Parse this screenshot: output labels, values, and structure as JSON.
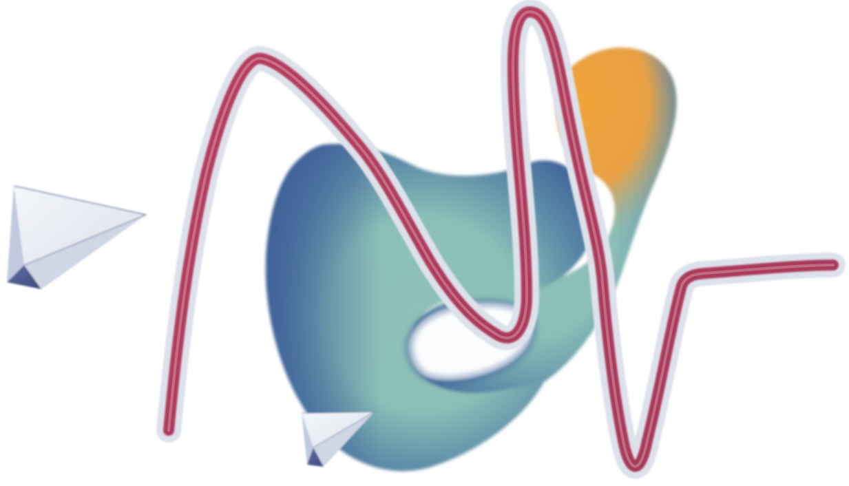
{
  "scene": {
    "background_color": "#ffffff",
    "elements": [
      "gradient-blob-shape",
      "ribbon-squiggle",
      "paper-plane-icon-large",
      "paper-plane-icon-small"
    ]
  },
  "palette": {
    "blob_light": "#8fc1b8",
    "blob_dark": "#3e5f98",
    "blob_orange": "#f0a43a",
    "ribbon_core": "#b5375a",
    "ribbon_edge": "#dde2ea",
    "plane_light": "#e7eaf0",
    "plane_shadow": "#3f4f86"
  }
}
